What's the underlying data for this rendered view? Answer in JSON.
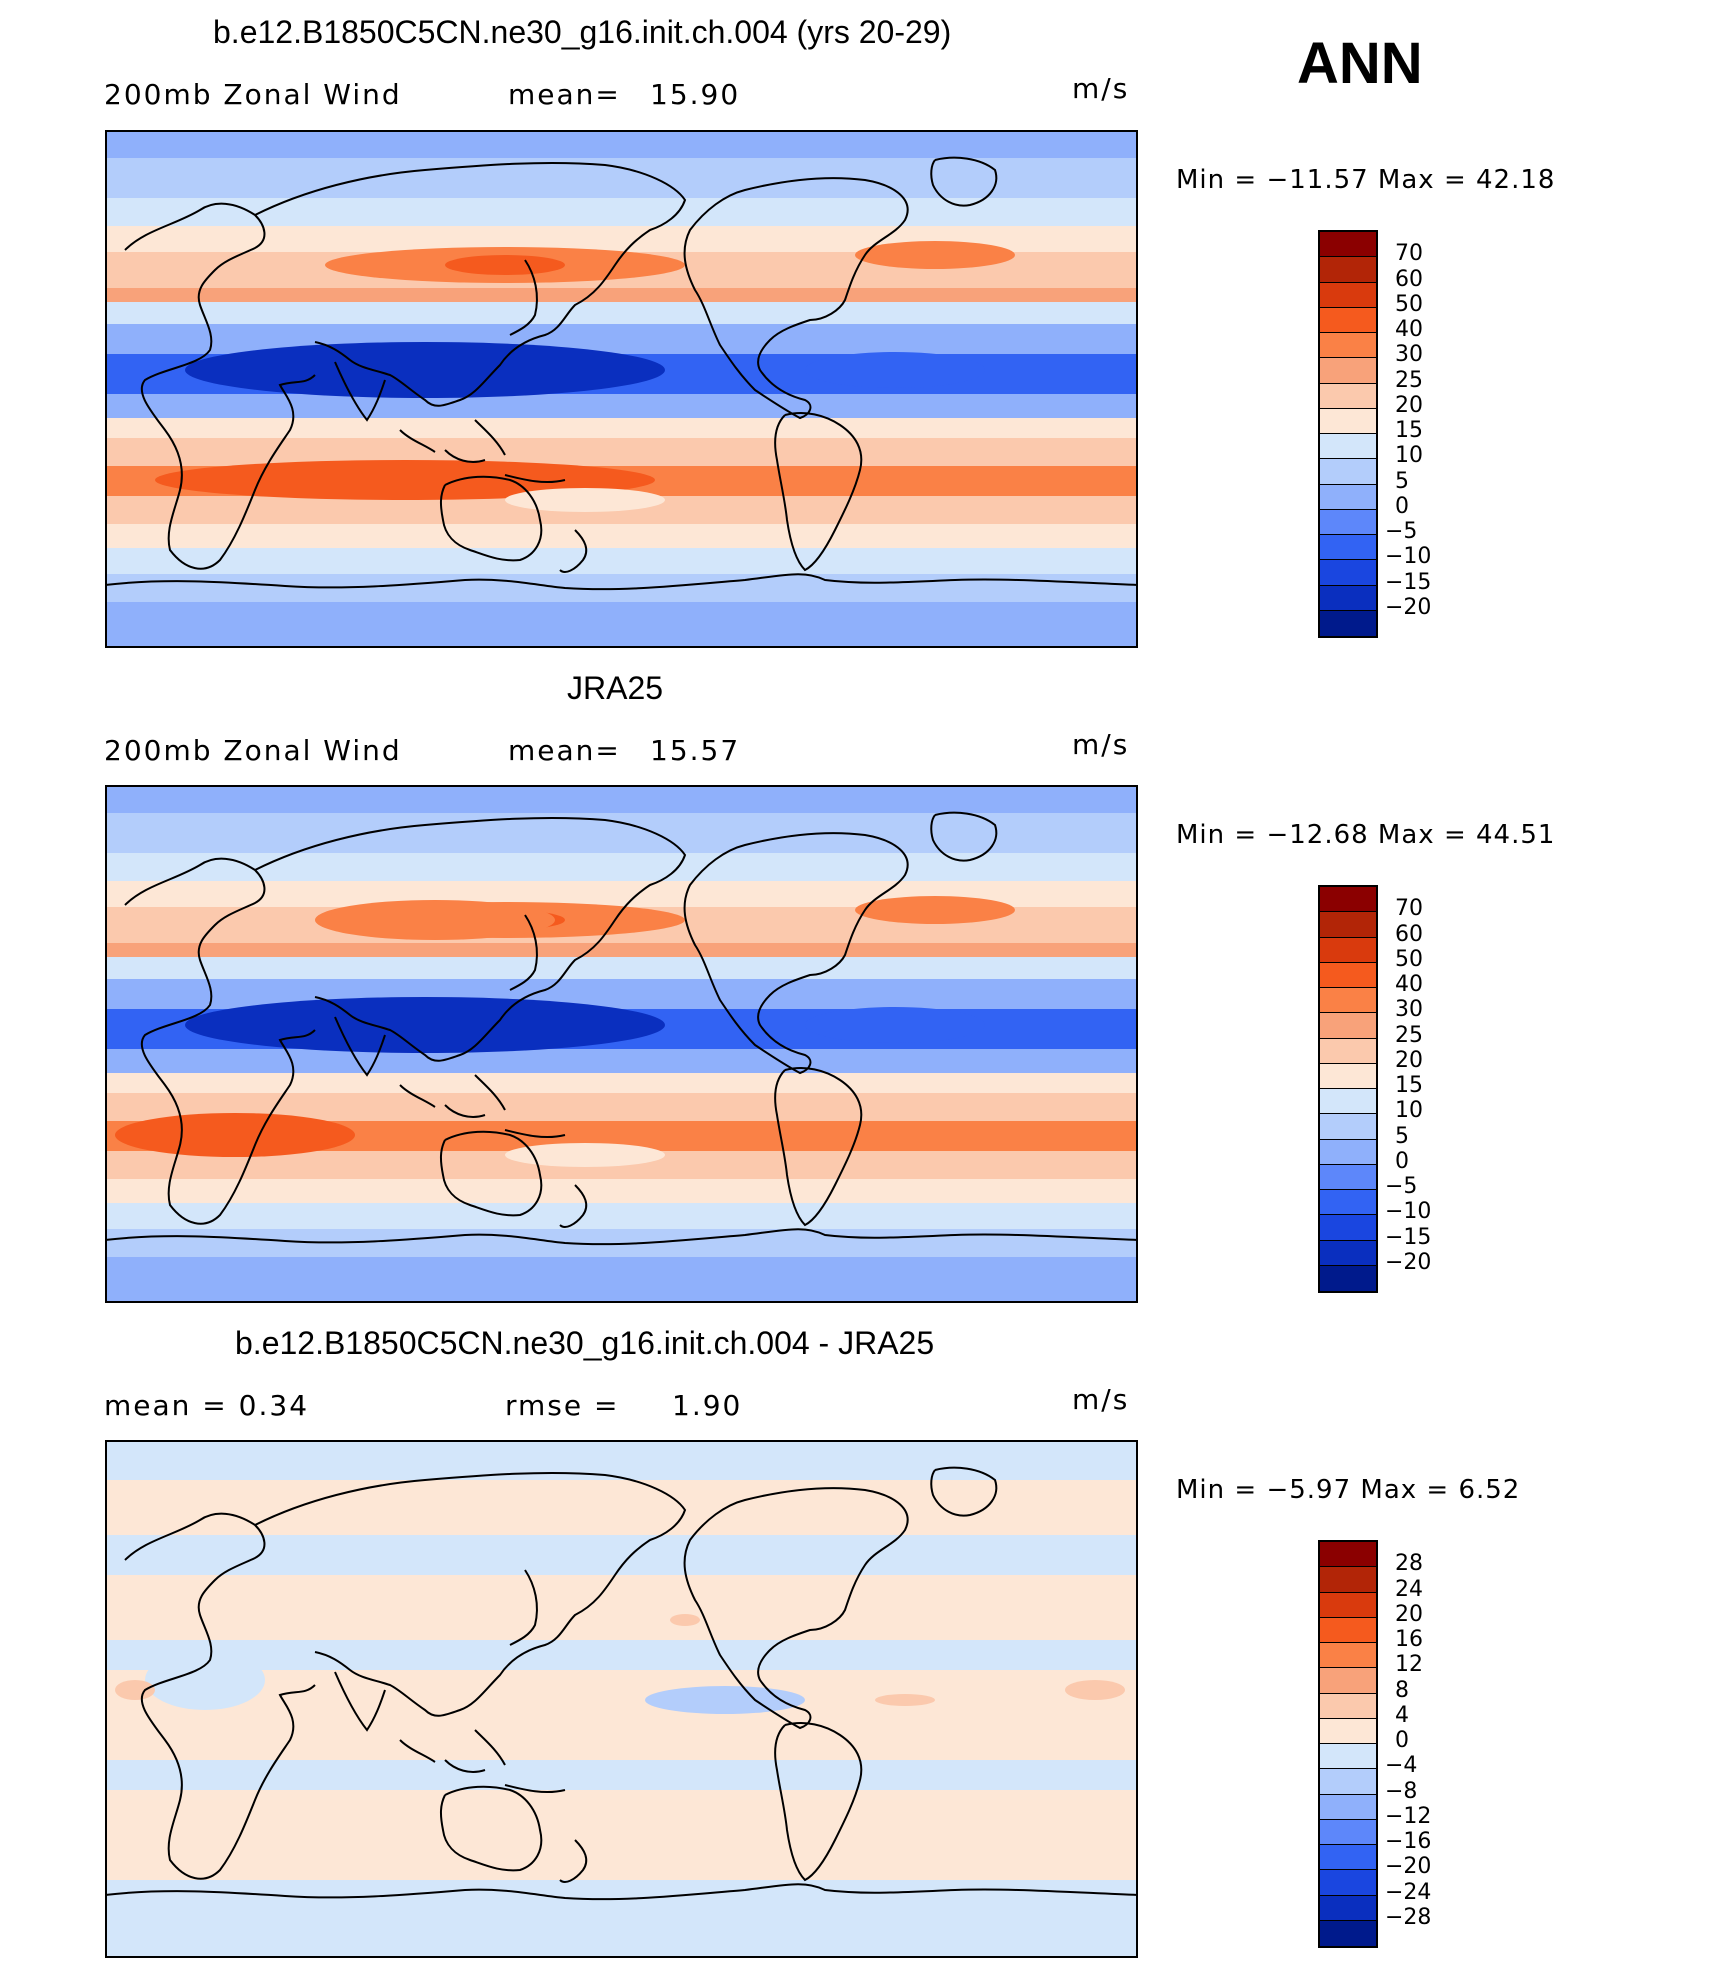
{
  "season": "ANN",
  "panels": [
    {
      "title": "b.e12.B1850C5CN.ne30_g16.init.ch.004 (yrs 20-29)",
      "left_label": "200mb  Zonal  Wind",
      "stat_label": "mean=",
      "stat_value": "15.90",
      "units": "m/s",
      "min_label": "Min  =  −11.57  Max  =    42.18",
      "levels": [
        "70",
        "60",
        "50",
        "40",
        "30",
        "25",
        "20",
        "15",
        "10",
        "5",
        "0",
        "−5",
        "−10",
        "−15",
        "−20"
      ]
    },
    {
      "title": "JRA25",
      "left_label": "200mb  Zonal  Wind",
      "stat_label": "mean=",
      "stat_value": "15.57",
      "units": "m/s",
      "min_label": "Min  =  −12.68  Max  =    44.51",
      "levels": [
        "70",
        "60",
        "50",
        "40",
        "30",
        "25",
        "20",
        "15",
        "10",
        "5",
        "0",
        "−5",
        "−10",
        "−15",
        "−20"
      ]
    },
    {
      "title": "b.e12.B1850C5CN.ne30_g16.init.ch.004 - JRA25",
      "left_label": "mean  =      0.34",
      "stat_label": "rmse  =",
      "stat_value": "1.90",
      "units": "m/s",
      "min_label": "Min  =     −5.97  Max  =      6.52",
      "levels": [
        "28",
        "24",
        "20",
        "16",
        "12",
        "8",
        "4",
        "0",
        "−4",
        "−8",
        "−12",
        "−16",
        "−20",
        "−24",
        "−28"
      ]
    }
  ],
  "colorbar_colors": [
    "#8b0000",
    "#b22507",
    "#d93a0d",
    "#f55a1e",
    "#fa8146",
    "#f8a27a",
    "#fbc9ad",
    "#fde7d6",
    "#d3e6fa",
    "#b3cdfb",
    "#8fb0fb",
    "#5d87fa",
    "#3263f3",
    "#1a46e0",
    "#0a2fbf",
    "#001a8c"
  ],
  "map_colors": {
    "blue_dark": "#0a2fbf",
    "blue_mid": "#3263f3",
    "blue_light": "#8fb0fb",
    "blue_pale": "#b3cdfb",
    "blue_faint": "#d3e6fa",
    "peach": "#fde7d6",
    "salmon_light": "#fbc9ad",
    "salmon": "#f8a27a",
    "orange": "#fa8146",
    "orange_dark": "#f55a1e"
  }
}
